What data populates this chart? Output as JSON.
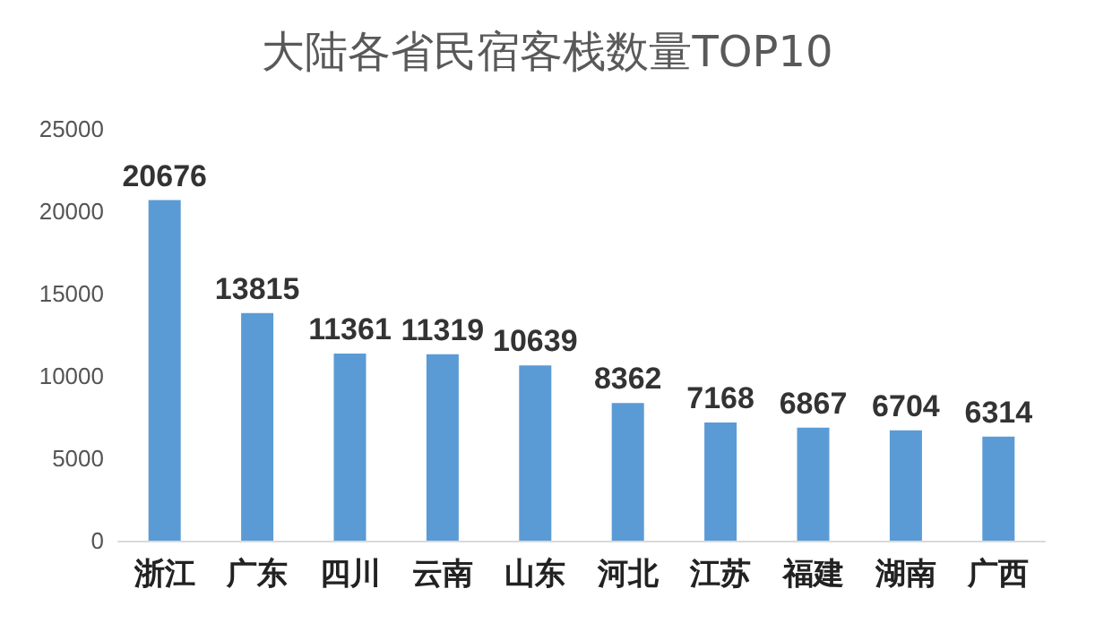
{
  "chart_data": {
    "type": "bar",
    "title": "大陆各省民宿客栈数量TOP10",
    "categories": [
      "浙江",
      "广东",
      "四川",
      "云南",
      "山东",
      "河北",
      "江苏",
      "福建",
      "湖南",
      "广西"
    ],
    "values": [
      20676,
      13815,
      11361,
      11319,
      10639,
      8362,
      7168,
      6867,
      6704,
      6314
    ],
    "color": "#5b9bd5",
    "ylim": [
      0,
      25000
    ],
    "yticks": [
      0,
      5000,
      10000,
      15000,
      20000,
      25000
    ],
    "grid": false,
    "data_labels": true
  }
}
